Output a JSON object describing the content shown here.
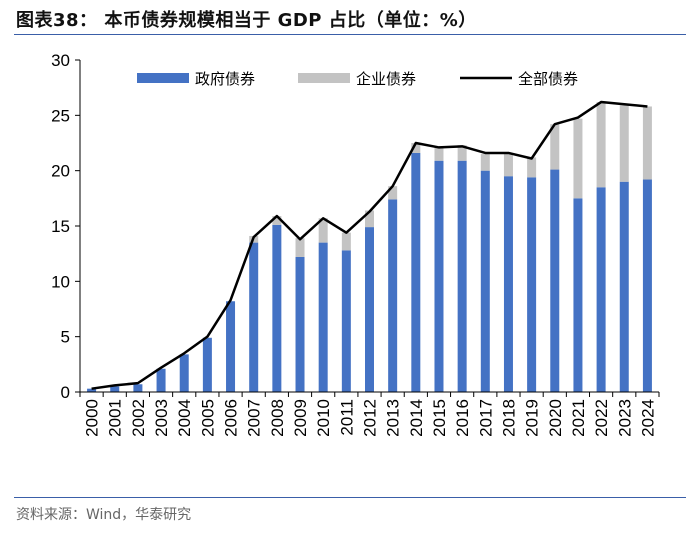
{
  "title": "图表38：  本币债券规模相当于 GDP 占比（单位：%）",
  "source": "资料来源：Wind，华泰研究",
  "colors": {
    "gov": "#4472c4",
    "corp": "#c3c3c3",
    "total": "#000000",
    "rule": "#3a5ea8"
  },
  "chart_data": {
    "type": "bar",
    "stacked": true,
    "categories": [
      "2000",
      "2001",
      "2002",
      "2003",
      "2004",
      "2005",
      "2006",
      "2007",
      "2008",
      "2009",
      "2010",
      "2011",
      "2012",
      "2013",
      "2014",
      "2015",
      "2016",
      "2017",
      "2018",
      "2019",
      "2020",
      "2021",
      "2022",
      "2023",
      "2024"
    ],
    "series": [
      {
        "name": "政府债券",
        "kind": "bar",
        "values": [
          0.3,
          0.5,
          0.7,
          2.1,
          3.4,
          4.9,
          8.2,
          13.5,
          15.1,
          12.2,
          13.5,
          12.8,
          14.9,
          17.4,
          21.6,
          20.9,
          20.9,
          20.0,
          19.5,
          19.4,
          20.1,
          17.5,
          18.5,
          19.0,
          19.2
        ]
      },
      {
        "name": "企业债券",
        "kind": "bar",
        "values": [
          0.0,
          0.0,
          0.0,
          0.0,
          0.0,
          0.0,
          0.0,
          0.6,
          0.8,
          1.7,
          2.2,
          1.6,
          1.5,
          1.2,
          0.9,
          1.2,
          1.4,
          1.5,
          2.0,
          1.8,
          4.1,
          7.2,
          7.7,
          6.9,
          6.6
        ]
      },
      {
        "name": "全部债券",
        "kind": "line",
        "values": [
          0.3,
          0.6,
          0.8,
          2.2,
          3.5,
          5.0,
          8.3,
          14.0,
          15.9,
          13.8,
          15.7,
          14.4,
          16.3,
          18.6,
          22.5,
          22.1,
          22.2,
          21.6,
          21.6,
          21.1,
          24.2,
          24.8,
          26.2,
          26.0,
          25.8
        ]
      }
    ],
    "ylim": [
      0,
      30
    ],
    "yticks": [
      0,
      5,
      10,
      15,
      20,
      25,
      30
    ],
    "xlabel": "",
    "ylabel": "",
    "legend": "top-inside"
  }
}
